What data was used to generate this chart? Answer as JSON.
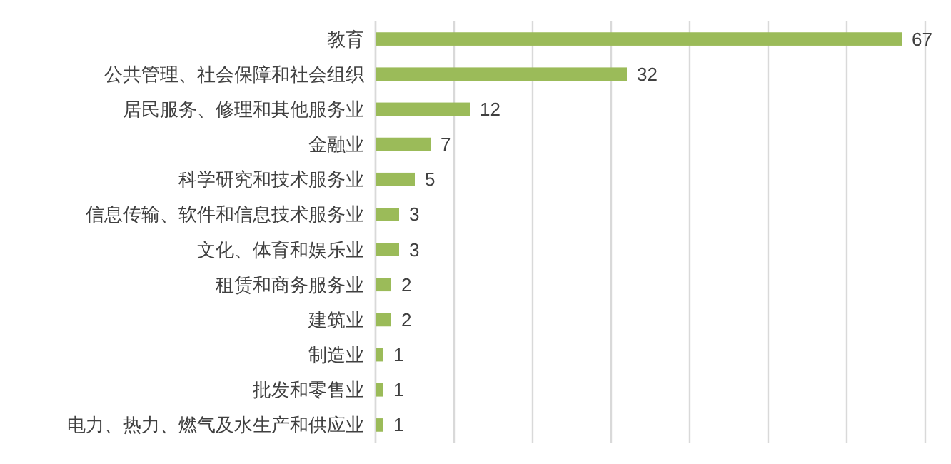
{
  "chart_data": {
    "type": "bar",
    "orientation": "horizontal",
    "categories": [
      "教育",
      "公共管理、社会保障和社会组织",
      "居民服务、修理和其他服务业",
      "金融业",
      "科学研究和技术服务业",
      "信息传输、软件和信息技术服务业",
      "文化、体育和娱乐业",
      "租赁和商务服务业",
      "建筑业",
      "制造业",
      "批发和零售业",
      "电力、热力、燃气及水生产和供应业"
    ],
    "values": [
      67,
      32,
      12,
      7,
      5,
      3,
      3,
      2,
      2,
      1,
      1,
      1
    ],
    "color": "#9bbb59",
    "xlim": [
      0,
      70
    ],
    "xticks": [
      {
        "value": 0,
        "label": null
      },
      {
        "value": 10,
        "label": null
      },
      {
        "value": 20,
        "label": null
      },
      {
        "value": 30,
        "label": null
      },
      {
        "value": 40,
        "label": null
      },
      {
        "value": 50,
        "label": null
      },
      {
        "value": 60,
        "label": null
      },
      {
        "value": 70,
        "label": null
      }
    ],
    "grid": "x",
    "tick_labels": "y",
    "data_labels": true
  }
}
